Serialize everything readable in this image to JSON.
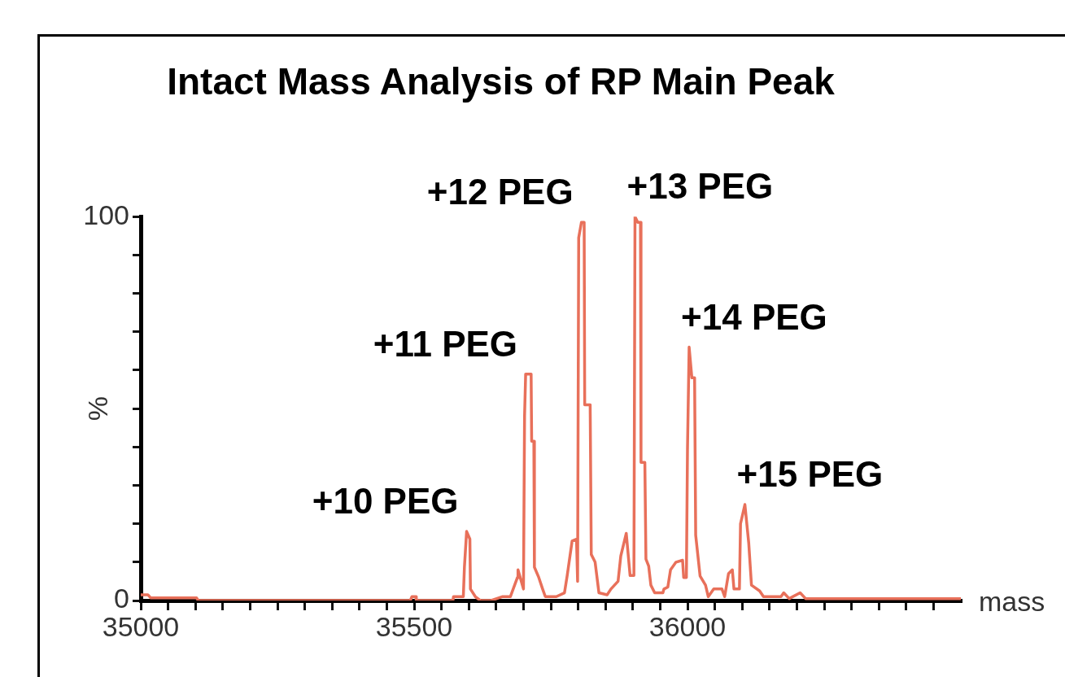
{
  "chart_data": {
    "type": "line",
    "title": "Intact Mass Analysis of RP Main Peak",
    "xlabel": "mass",
    "ylabel": "%",
    "x": [
      35000,
      35013,
      35018,
      35102,
      35105,
      35493,
      35496,
      35503,
      35504,
      35571,
      35572,
      35590,
      35592,
      35596,
      35602,
      35603,
      35612,
      35621,
      35641,
      35661,
      35676,
      35689,
      35690,
      35700,
      35702,
      35704,
      35714,
      35715,
      35719,
      35720,
      35728,
      35735,
      35740,
      35760,
      35775,
      35780,
      35789,
      35797,
      35799,
      35801,
      35806,
      35811,
      35812,
      35822,
      35824,
      35831,
      35838,
      35853,
      35860,
      35873,
      35878,
      35888,
      35895,
      35902,
      35904,
      35909,
      35914,
      35915,
      35922,
      35924,
      35929,
      35933,
      35940,
      35955,
      35957,
      35964,
      35969,
      35979,
      35991,
      35993,
      35998,
      36000,
      36003,
      36008,
      36013,
      36015,
      36023,
      36033,
      36038,
      36048,
      36063,
      36068,
      36075,
      36082,
      36085,
      36095,
      36097,
      36105,
      36112,
      36117,
      36132,
      36139,
      36171,
      36176,
      36186,
      36206,
      36216,
      36500
    ],
    "series": [
      {
        "color": "#e8705a",
        "values": [
          1.5,
          1.5,
          0.7,
          0.7,
          0,
          0,
          1,
          1,
          0,
          0,
          1,
          1,
          8.7,
          18,
          16,
          3,
          1,
          0,
          0,
          1,
          1,
          6,
          8,
          3,
          48,
          59,
          59,
          41.5,
          41.5,
          8.7,
          6,
          3,
          1,
          1,
          2,
          6.5,
          15.5,
          16,
          5,
          94.5,
          98.5,
          98.5,
          51,
          51,
          12,
          10,
          2,
          1.5,
          3,
          5,
          11.6,
          17.5,
          6.5,
          6.5,
          100,
          98.5,
          98.5,
          36,
          36,
          10.8,
          9,
          4,
          2,
          2,
          3,
          3.5,
          8,
          10,
          10.5,
          6,
          6,
          39.4,
          66,
          58,
          58,
          17,
          6.4,
          4,
          1,
          3,
          3,
          1,
          7,
          8,
          3,
          3,
          20,
          25,
          15,
          4,
          2.5,
          1,
          1,
          2,
          0.5,
          2,
          0.5,
          0.5
        ]
      }
    ],
    "xlim": [
      35000,
      36500
    ],
    "xticks": [
      35000,
      {
        "value": 35050,
        "label": null
      },
      {
        "value": 35100,
        "label": null
      },
      {
        "value": 35150,
        "label": null
      },
      {
        "value": 35200,
        "label": null
      },
      {
        "value": 35250,
        "label": null
      },
      {
        "value": 35300,
        "label": null
      },
      {
        "value": 35350,
        "label": null
      },
      {
        "value": 35400,
        "label": null
      },
      {
        "value": 35450,
        "label": null
      },
      35500,
      {
        "value": 35550,
        "label": null
      },
      {
        "value": 35600,
        "label": null
      },
      {
        "value": 35650,
        "label": null
      },
      {
        "value": 35700,
        "label": null
      },
      {
        "value": 35750,
        "label": null
      },
      {
        "value": 35800,
        "label": null
      },
      {
        "value": 35850,
        "label": null
      },
      {
        "value": 35900,
        "label": null
      },
      {
        "value": 35950,
        "label": null
      },
      36000,
      {
        "value": 36050,
        "label": null
      },
      {
        "value": 36100,
        "label": null
      },
      {
        "value": 36150,
        "label": null
      },
      {
        "value": 36200,
        "label": null
      },
      {
        "value": 36250,
        "label": null
      },
      {
        "value": 36300,
        "label": null
      },
      {
        "value": 36350,
        "label": null
      },
      {
        "value": 36400,
        "label": null
      },
      {
        "value": 36450,
        "label": null
      }
    ],
    "ylim": [
      0,
      100
    ],
    "yticks": [
      0,
      {
        "value": 10,
        "label": null
      },
      {
        "value": 20,
        "label": null
      },
      {
        "value": 30,
        "label": null
      },
      {
        "value": 40,
        "label": null
      },
      {
        "value": 50,
        "label": null
      },
      {
        "value": 60,
        "label": null
      },
      {
        "value": 70,
        "label": null
      },
      {
        "value": 80,
        "label": null
      },
      {
        "value": 90,
        "label": null
      },
      100
    ],
    "grid": false,
    "legend": false,
    "annotations": [
      {
        "text": "+10 PEG",
        "x": 35596,
        "y": 18
      },
      {
        "text": "+11 PEG",
        "x": 35704,
        "y": 59
      },
      {
        "text": "+12 PEG",
        "x": 35806,
        "y": 98.5
      },
      {
        "text": "+13 PEG",
        "x": 35904,
        "y": 100
      },
      {
        "text": "+14 PEG",
        "x": 36003,
        "y": 66
      },
      {
        "text": "+15 PEG",
        "x": 36105,
        "y": 25
      }
    ]
  }
}
